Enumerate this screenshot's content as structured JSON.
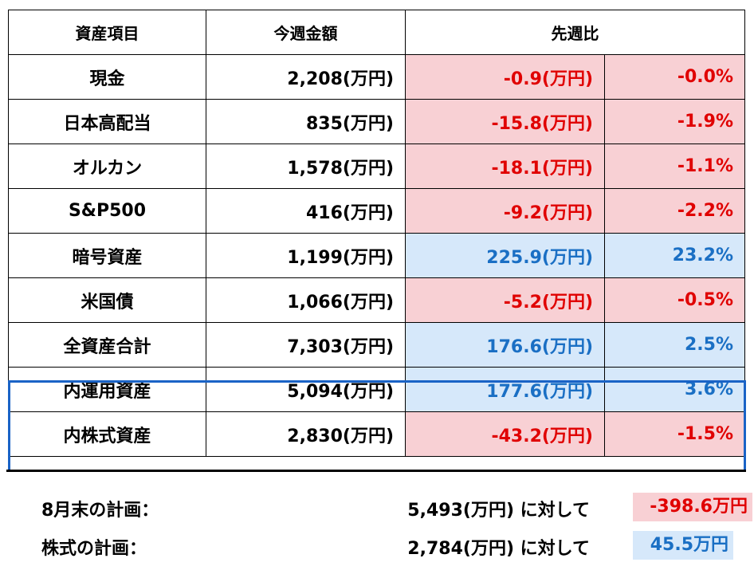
{
  "header": {
    "item": "資産項目",
    "this_week": "今週金額",
    "vs_last_week": "先週比"
  },
  "rows": [
    {
      "name": "現金",
      "amount": "2,208(万円)",
      "change": "-0.9(万円)",
      "pct": "-0.0%",
      "trend": "neg"
    },
    {
      "name": "日本高配当",
      "amount": "835(万円)",
      "change": "-15.8(万円)",
      "pct": "-1.9%",
      "trend": "neg"
    },
    {
      "name": "オルカン",
      "amount": "1,578(万円)",
      "change": "-18.1(万円)",
      "pct": "-1.1%",
      "trend": "neg"
    },
    {
      "name": "S&P500",
      "amount": "416(万円)",
      "change": "-9.2(万円)",
      "pct": "-2.2%",
      "trend": "neg"
    },
    {
      "name": "暗号資産",
      "amount": "1,199(万円)",
      "change": "225.9(万円)",
      "pct": "23.2%",
      "trend": "pos"
    },
    {
      "name": "米国債",
      "amount": "1,066(万円)",
      "change": "-5.2(万円)",
      "pct": "-0.5%",
      "trend": "neg"
    },
    {
      "name": "全資産合計",
      "amount": "7,303(万円)",
      "change": "176.6(万円)",
      "pct": "2.5%",
      "trend": "pos"
    },
    {
      "name": "内運用資産",
      "amount": "5,094(万円)",
      "change": "177.6(万円)",
      "pct": "3.6%",
      "trend": "pos"
    },
    {
      "name": "内株式資産",
      "amount": "2,830(万円)",
      "change": "-43.2(万円)",
      "pct": "-1.5%",
      "trend": "neg"
    }
  ],
  "plans": [
    {
      "label": "8月末の計画：",
      "amount": "5,493(万円) に対して",
      "diff": "-398.6万円",
      "trend": "neg"
    },
    {
      "label": "株式の計画：",
      "amount": "2,784(万円) に対して",
      "diff": "45.5万円",
      "trend": "pos"
    }
  ],
  "colors": {
    "negative_text": "#e00000",
    "negative_bg": "#f8d0d4",
    "positive_text": "#1a6fc4",
    "positive_bg": "#d6e8fa",
    "highlight_border": "#1a63c6"
  }
}
